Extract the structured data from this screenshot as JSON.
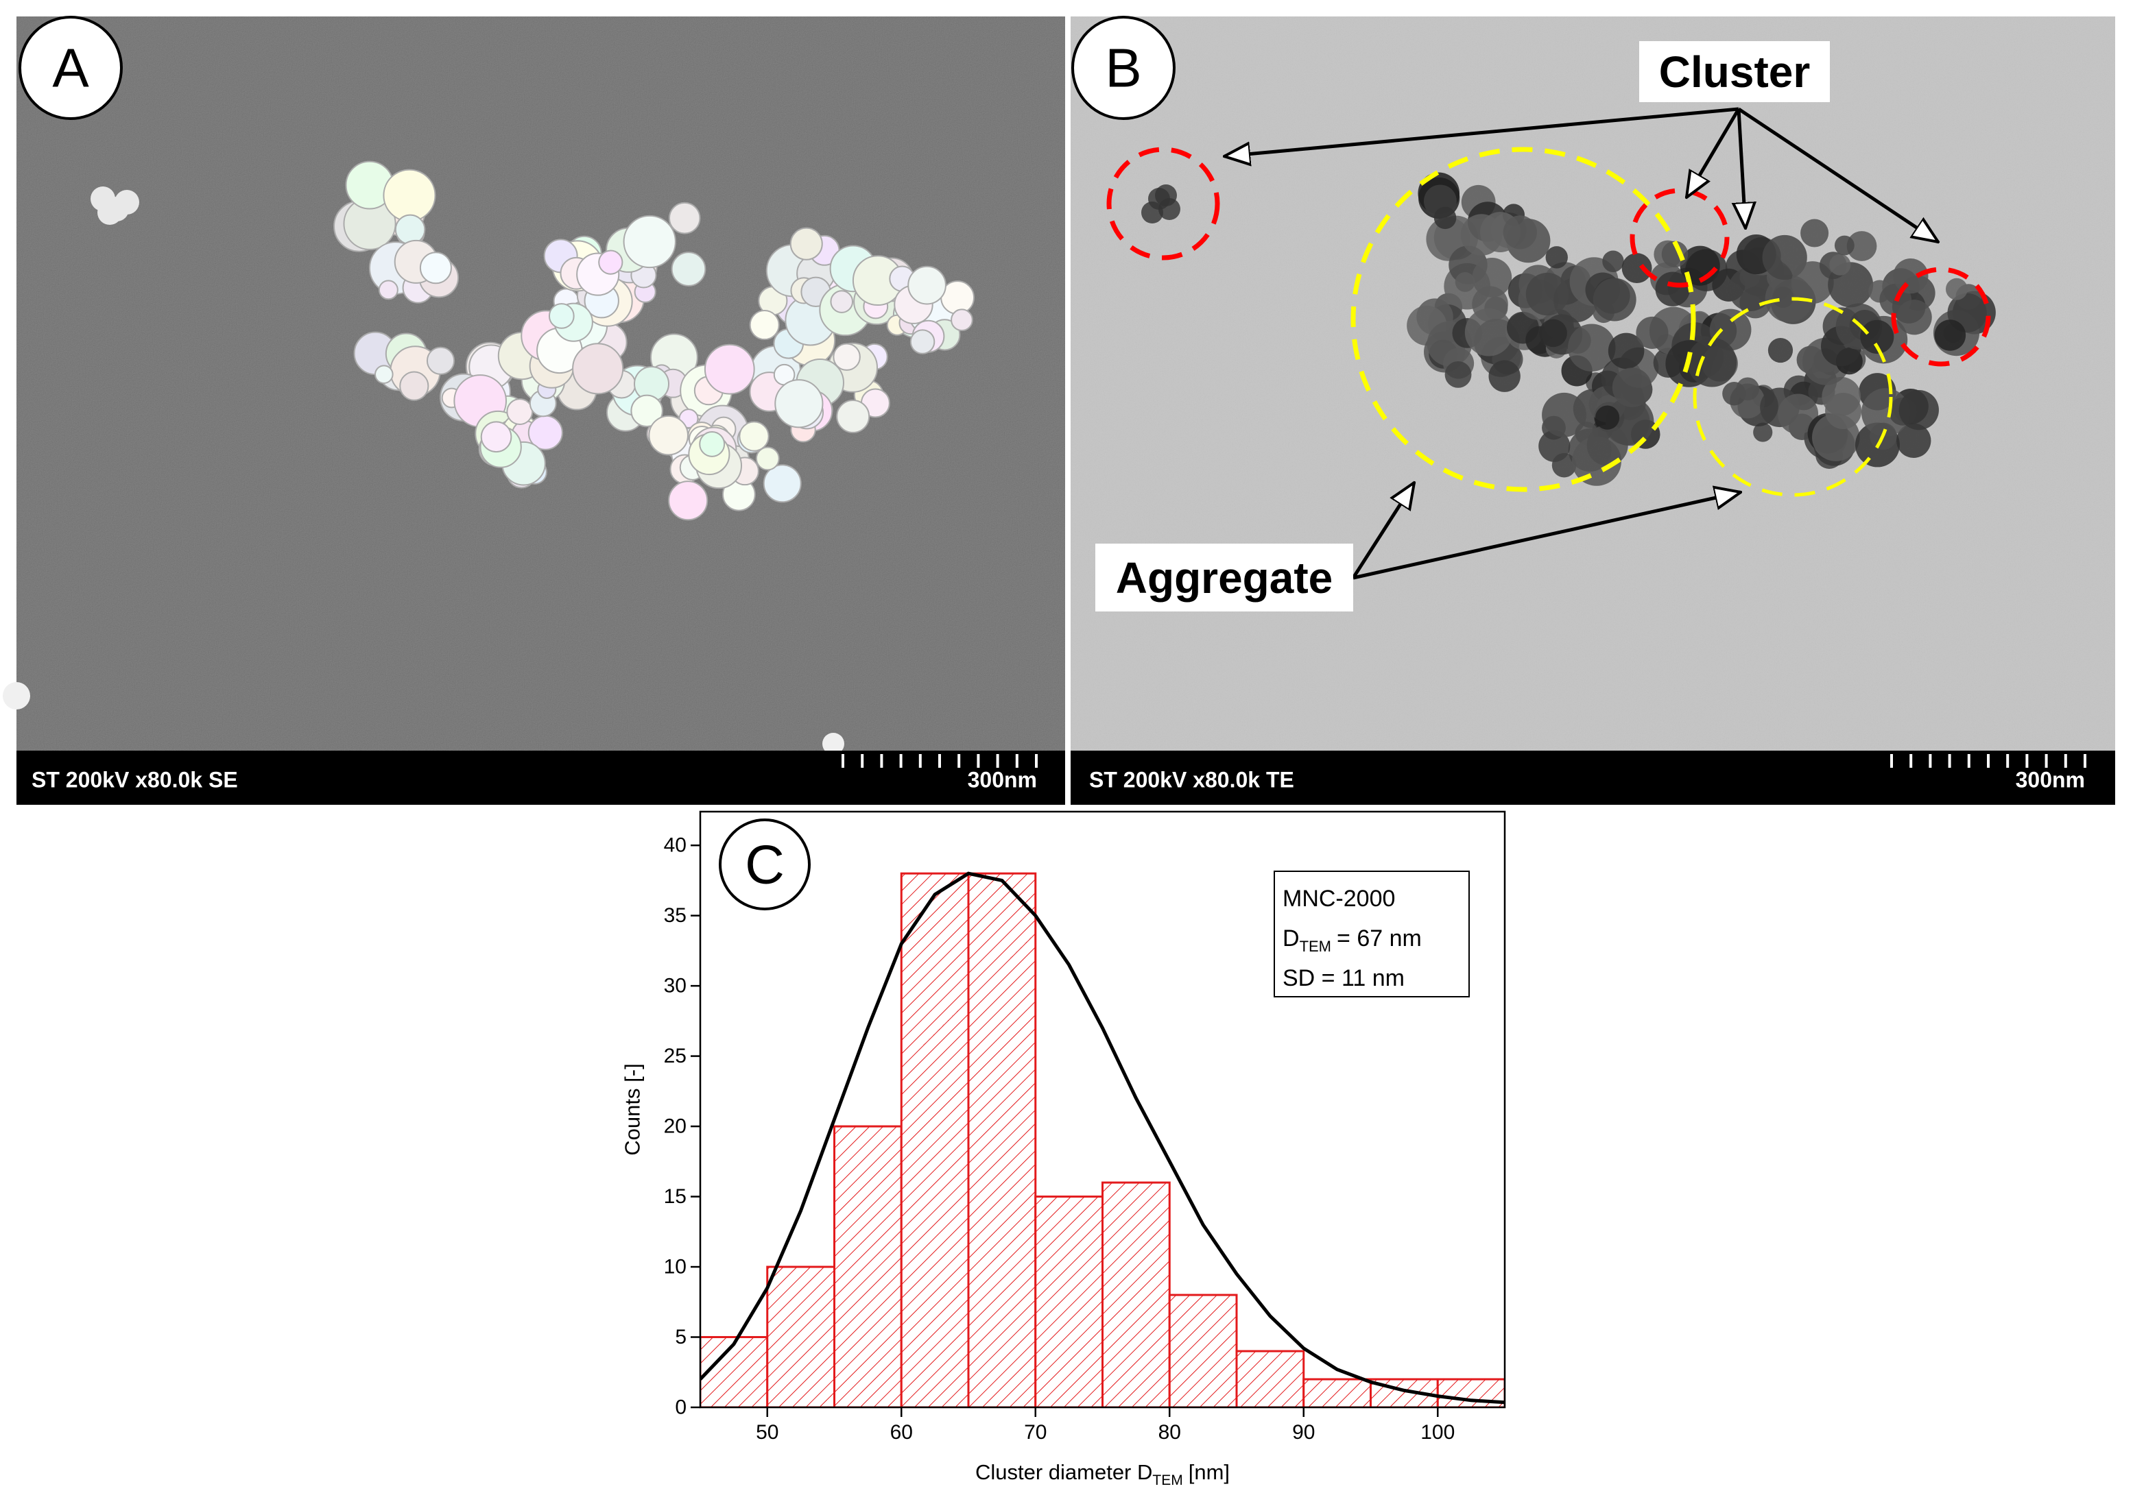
{
  "panels": {
    "a": {
      "label": "A",
      "info": "ST 200kV x80.0k SE",
      "scale": "300nm"
    },
    "b": {
      "label": "B",
      "info": "ST 200kV x80.0k TE",
      "scale": "300nm",
      "cluster": "Cluster",
      "aggregate": "Aggregate"
    }
  },
  "chart_data": {
    "type": "histogram",
    "panel_label": "C",
    "xlabel": "Cluster diameter D",
    "xlabel_sub": "TEM",
    "xlabel_unit": "[nm]",
    "ylabel": "Counts [-]",
    "bins": [
      45,
      50,
      55,
      60,
      65,
      70,
      75,
      80,
      85,
      90,
      95,
      100,
      105
    ],
    "values": [
      5,
      10,
      20,
      38,
      38,
      15,
      16,
      8,
      4,
      2,
      2,
      2
    ],
    "color": "#e31a1c",
    "fit": {
      "color": "#000000",
      "x": [
        45,
        47.5,
        50,
        52.5,
        55,
        57.5,
        60,
        62.5,
        65,
        67.5,
        70,
        72.5,
        75,
        77.5,
        80,
        82.5,
        85,
        87.5,
        90,
        92.5,
        95,
        97.5,
        100,
        102.5,
        105
      ],
      "values": [
        2,
        4.5,
        8.5,
        14,
        20.5,
        27,
        33,
        36.5,
        38,
        37.5,
        35,
        31.5,
        27,
        22,
        17.5,
        13,
        9.5,
        6.5,
        4.2,
        2.7,
        1.8,
        1.2,
        0.8,
        0.5,
        0.35
      ]
    },
    "xlim": [
      45,
      105
    ],
    "ylim": [
      0,
      42.4
    ],
    "xticks": [
      50,
      60,
      70,
      80,
      90,
      100
    ],
    "yticks": [
      0,
      5,
      10,
      15,
      20,
      25,
      30,
      35,
      40
    ],
    "annotation": {
      "name": "MNC-2000",
      "d_symbol": "D",
      "d_subscript": "TEM",
      "d_value": "= 67 nm",
      "sd": "SD = 11 nm"
    }
  }
}
